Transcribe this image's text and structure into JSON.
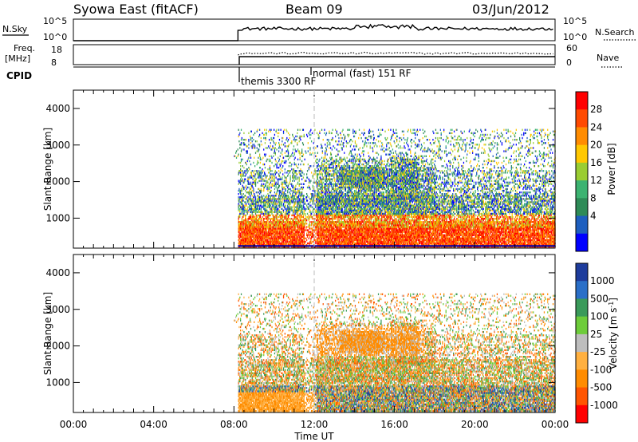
{
  "header": {
    "station": "Syowa East (fitACF)",
    "beam": "Beam 09",
    "date": "03/Jun/2012"
  },
  "top_panels": {
    "nsky_label": "N.Sky",
    "nsky_ticks": [
      "10^5",
      "10^0"
    ],
    "nsearch_label": "N.Search",
    "nsearch_ticks": [
      "10^5",
      "10^0"
    ],
    "freq_label": "Freq.",
    "freq_unit": "[MHz]",
    "freq_ticks": [
      "18",
      "8"
    ],
    "nave_label": "Nave",
    "nave_ticks": [
      "60",
      "0"
    ],
    "cpid_label": "CPID",
    "cpid_modes": [
      "themis 3300 RF",
      "normal (fast) 151 RF"
    ]
  },
  "chart_data": [
    {
      "type": "heatmap",
      "name": "power",
      "ylabel": "Slant Range [km]",
      "ylim": [
        180,
        4500
      ],
      "yticks": [
        "4000",
        "3000",
        "2000",
        "1000"
      ],
      "xlim": [
        0,
        24
      ],
      "colorbar": {
        "label": "Power [dB]",
        "ticks": [
          "28",
          "24",
          "20",
          "16",
          "12",
          "8",
          "4"
        ],
        "colors": [
          "#ff0000",
          "#ff4a00",
          "#ff8c00",
          "#ffc800",
          "#9acd32",
          "#3cb371",
          "#2e8b57",
          "#1e5fbf",
          "#0000ff"
        ]
      }
    },
    {
      "type": "heatmap",
      "name": "velocity",
      "ylabel": "Slant Range [km]",
      "xlabel": "Time UT",
      "ylim": [
        180,
        4500
      ],
      "yticks": [
        "4000",
        "3000",
        "2000",
        "1000"
      ],
      "xlim": [
        0,
        24
      ],
      "xticks": [
        "00:00",
        "04:00",
        "08:00",
        "12:00",
        "16:00",
        "20:00",
        "00:00"
      ],
      "colorbar": {
        "label": "Velocity [m s",
        "label_sup": "-1",
        "label_end": "]",
        "ticks": [
          "1000",
          "500",
          "100",
          "25",
          "-25",
          "-100",
          "-500",
          "-1000"
        ],
        "colors": [
          "#1e3c9c",
          "#2a6fc8",
          "#3a9a5a",
          "#6dcc3a",
          "#bdbdbd",
          "#ffb040",
          "#ff8c00",
          "#ff5500",
          "#ff0000"
        ]
      }
    }
  ]
}
